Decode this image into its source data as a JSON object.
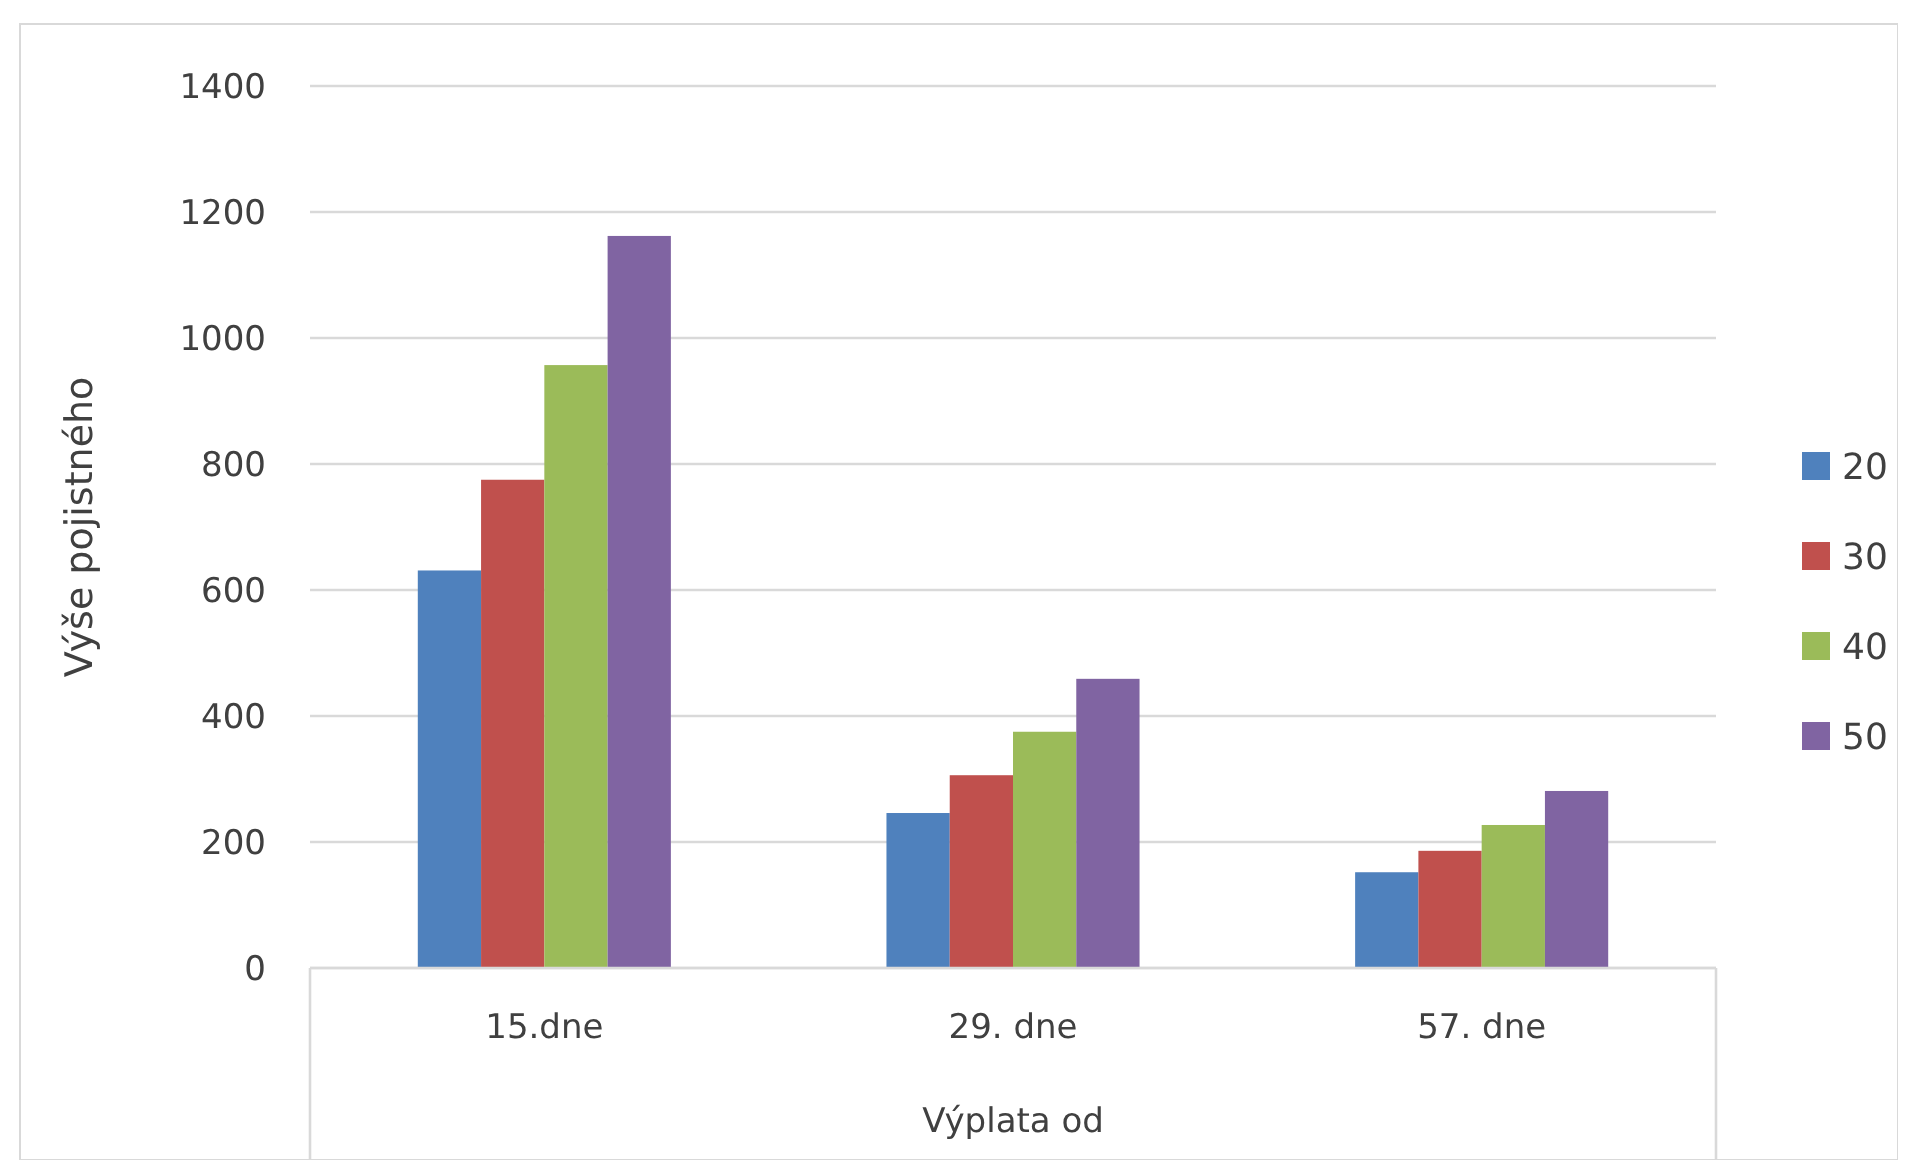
{
  "chart_data": {
    "type": "bar",
    "xlabel": "Výplata od",
    "ylabel": "Výše pojistného",
    "categories": [
      "15.dne",
      "29. dne",
      "57. dne"
    ],
    "series": [
      {
        "name": "20",
        "color": "#4f81bd",
        "values": [
          631,
          246,
          152
        ]
      },
      {
        "name": "30",
        "color": "#c0504d",
        "values": [
          775,
          306,
          186
        ]
      },
      {
        "name": "40",
        "color": "#9bbb59",
        "values": [
          957,
          375,
          227
        ]
      },
      {
        "name": "50",
        "color": "#8064a2",
        "values": [
          1162,
          459,
          281
        ]
      }
    ],
    "ylim": [
      0,
      1400
    ],
    "yticks": [
      0,
      200,
      400,
      600,
      800,
      1000,
      1200,
      1400
    ],
    "grid": "y",
    "legend": "right"
  }
}
